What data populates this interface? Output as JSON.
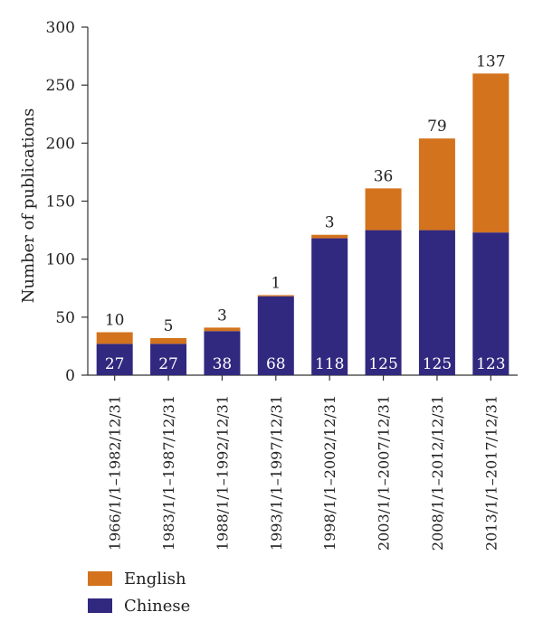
{
  "chart_data": {
    "type": "bar",
    "stacked": true,
    "ylabel": "Number of publications",
    "xlabel": "",
    "ylim": [
      0,
      300
    ],
    "yticks": [
      0,
      50,
      100,
      150,
      200,
      250,
      300
    ],
    "grid": false,
    "legend_position": "bottom-left",
    "categories": [
      "1966/1/1–1982/12/31",
      "1983/1/1–1987/12/31",
      "1988/1/1–1992/12/31",
      "1993/1/1–1997/12/31",
      "1998/1/1–2002/12/31",
      "2003/1/1–2007/12/31",
      "2008/1/1–2012/12/31",
      "2013/1/1–2017/12/31"
    ],
    "series": [
      {
        "name": "Chinese",
        "color": "#31287f",
        "values": [
          27,
          27,
          38,
          68,
          118,
          125,
          125,
          123
        ]
      },
      {
        "name": "English",
        "color": "#d3731d",
        "values": [
          10,
          5,
          3,
          1,
          3,
          36,
          79,
          137
        ]
      }
    ],
    "legend_order": [
      "English",
      "Chinese"
    ]
  }
}
